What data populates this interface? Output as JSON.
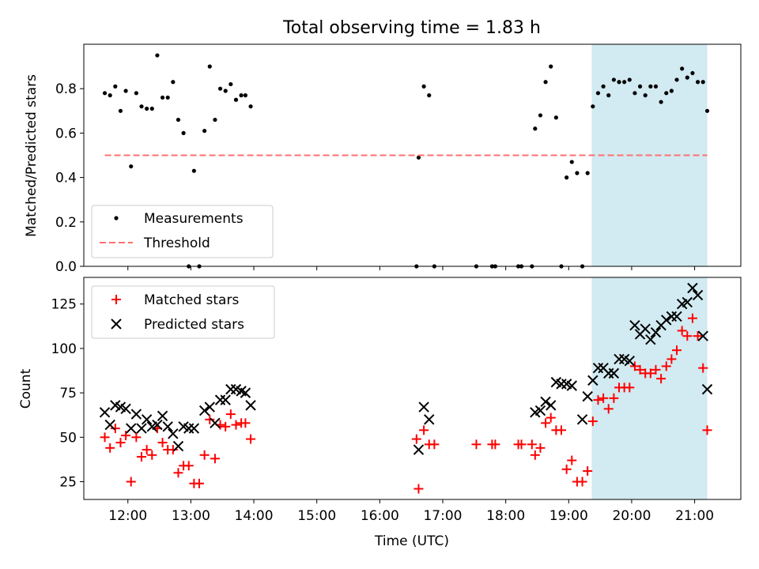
{
  "title": "Total observing time = 1.83 h",
  "colors": {
    "measurement": "#000000",
    "threshold": "#ff7070",
    "matched": "#ff0000",
    "predicted": "#000000",
    "highlight": "#add8e6"
  },
  "chart_data": [
    {
      "type": "scatter",
      "ylabel": "Matched/Predicted stars",
      "ylim": [
        0,
        1.0
      ],
      "yticks": [
        "0.0",
        "0.2",
        "0.4",
        "0.6",
        "0.8"
      ],
      "highlight_span": [
        "19:22",
        "21:12"
      ],
      "legend_position": "lower-left",
      "series": [
        {
          "name": "Measurements",
          "marker": "dot",
          "points": [
            [
              "11:38",
              0.78
            ],
            [
              "11:43",
              0.77
            ],
            [
              "11:48",
              0.81
            ],
            [
              "11:53",
              0.7
            ],
            [
              "11:58",
              0.79
            ],
            [
              "12:03",
              0.45
            ],
            [
              "12:08",
              0.78
            ],
            [
              "12:13",
              0.72
            ],
            [
              "12:18",
              0.71
            ],
            [
              "12:23",
              0.71
            ],
            [
              "12:28",
              0.95
            ],
            [
              "12:33",
              0.76
            ],
            [
              "12:38",
              0.76
            ],
            [
              "12:43",
              0.83
            ],
            [
              "12:48",
              0.66
            ],
            [
              "12:53",
              0.6
            ],
            [
              "12:58",
              0.0
            ],
            [
              "13:03",
              0.43
            ],
            [
              "13:08",
              0.0
            ],
            [
              "13:13",
              0.61
            ],
            [
              "13:18",
              0.9
            ],
            [
              "13:23",
              0.66
            ],
            [
              "13:28",
              0.8
            ],
            [
              "13:33",
              0.79
            ],
            [
              "13:38",
              0.82
            ],
            [
              "13:43",
              0.75
            ],
            [
              "13:48",
              0.77
            ],
            [
              "13:52",
              0.77
            ],
            [
              "13:57",
              0.72
            ],
            [
              "16:35",
              0.0
            ],
            [
              "16:37",
              0.49
            ],
            [
              "16:42",
              0.81
            ],
            [
              "16:47",
              0.77
            ],
            [
              "16:52",
              0.0
            ],
            [
              "17:32",
              0.0
            ],
            [
              "17:47",
              0.0
            ],
            [
              "17:50",
              0.0
            ],
            [
              "18:12",
              0.0
            ],
            [
              "18:15",
              0.0
            ],
            [
              "18:25",
              0.0
            ],
            [
              "18:28",
              0.62
            ],
            [
              "18:33",
              0.68
            ],
            [
              "18:38",
              0.83
            ],
            [
              "18:43",
              0.9
            ],
            [
              "18:48",
              0.67
            ],
            [
              "18:53",
              0.0
            ],
            [
              "18:58",
              0.4
            ],
            [
              "19:03",
              0.47
            ],
            [
              "19:08",
              0.42
            ],
            [
              "19:13",
              0.0
            ],
            [
              "19:18",
              0.42
            ],
            [
              "19:23",
              0.72
            ],
            [
              "19:28",
              0.78
            ],
            [
              "19:33",
              0.81
            ],
            [
              "19:38",
              0.77
            ],
            [
              "19:43",
              0.84
            ],
            [
              "19:48",
              0.83
            ],
            [
              "19:53",
              0.83
            ],
            [
              "19:58",
              0.84
            ],
            [
              "20:03",
              0.78
            ],
            [
              "20:08",
              0.81
            ],
            [
              "20:13",
              0.77
            ],
            [
              "20:18",
              0.81
            ],
            [
              "20:23",
              0.81
            ],
            [
              "20:28",
              0.74
            ],
            [
              "20:33",
              0.78
            ],
            [
              "20:38",
              0.79
            ],
            [
              "20:43",
              0.84
            ],
            [
              "20:48",
              0.89
            ],
            [
              "20:53",
              0.85
            ],
            [
              "20:58",
              0.87
            ],
            [
              "21:03",
              0.83
            ],
            [
              "21:08",
              0.83
            ],
            [
              "21:12",
              0.7
            ]
          ]
        },
        {
          "name": "Threshold",
          "marker": "dashed-line",
          "x": [
            "11:38",
            "21:12"
          ],
          "y": 0.5
        }
      ]
    },
    {
      "type": "scatter",
      "ylabel": "Count",
      "xlabel": "Time (UTC)",
      "ylim": [
        15,
        140
      ],
      "yticks": [
        25,
        50,
        75,
        100,
        125
      ],
      "xticks": [
        "12:00",
        "13:00",
        "14:00",
        "15:00",
        "16:00",
        "17:00",
        "18:00",
        "19:00",
        "20:00",
        "21:00"
      ],
      "highlight_span": [
        "19:22",
        "21:12"
      ],
      "legend_position": "upper-left",
      "series": [
        {
          "name": "Matched stars",
          "marker": "plus",
          "points": [
            [
              "11:38",
              50
            ],
            [
              "11:43",
              44
            ],
            [
              "11:48",
              55
            ],
            [
              "11:53",
              47
            ],
            [
              "11:58",
              51
            ],
            [
              "12:03",
              25
            ],
            [
              "12:08",
              50
            ],
            [
              "12:13",
              39
            ],
            [
              "12:18",
              43
            ],
            [
              "12:23",
              40
            ],
            [
              "12:28",
              55
            ],
            [
              "12:33",
              47
            ],
            [
              "12:38",
              43
            ],
            [
              "12:43",
              43
            ],
            [
              "12:48",
              30
            ],
            [
              "12:53",
              34
            ],
            [
              "12:58",
              34
            ],
            [
              "13:03",
              24
            ],
            [
              "13:08",
              24
            ],
            [
              "13:13",
              40
            ],
            [
              "13:18",
              60
            ],
            [
              "13:23",
              38
            ],
            [
              "13:28",
              57
            ],
            [
              "13:33",
              56
            ],
            [
              "13:38",
              63
            ],
            [
              "13:43",
              57
            ],
            [
              "13:48",
              58
            ],
            [
              "13:52",
              58
            ],
            [
              "13:57",
              49
            ],
            [
              "16:35",
              49
            ],
            [
              "16:37",
              21
            ],
            [
              "16:42",
              54
            ],
            [
              "16:47",
              46
            ],
            [
              "16:52",
              46
            ],
            [
              "17:32",
              46
            ],
            [
              "17:47",
              46
            ],
            [
              "17:50",
              46
            ],
            [
              "18:12",
              46
            ],
            [
              "18:15",
              46
            ],
            [
              "18:25",
              46
            ],
            [
              "18:28",
              40
            ],
            [
              "18:33",
              44
            ],
            [
              "18:38",
              58
            ],
            [
              "18:43",
              61
            ],
            [
              "18:48",
              54
            ],
            [
              "18:53",
              54
            ],
            [
              "18:58",
              32
            ],
            [
              "19:03",
              37
            ],
            [
              "19:08",
              25
            ],
            [
              "19:13",
              25
            ],
            [
              "19:18",
              31
            ],
            [
              "19:23",
              59
            ],
            [
              "19:28",
              71
            ],
            [
              "19:33",
              72
            ],
            [
              "19:38",
              66
            ],
            [
              "19:43",
              72
            ],
            [
              "19:48",
              78
            ],
            [
              "19:53",
              78
            ],
            [
              "19:58",
              78
            ],
            [
              "20:03",
              90
            ],
            [
              "20:08",
              88
            ],
            [
              "20:13",
              86
            ],
            [
              "20:18",
              86
            ],
            [
              "20:23",
              88
            ],
            [
              "20:28",
              83
            ],
            [
              "20:33",
              90
            ],
            [
              "20:38",
              94
            ],
            [
              "20:43",
              99
            ],
            [
              "20:48",
              110
            ],
            [
              "20:53",
              107
            ],
            [
              "20:58",
              117
            ],
            [
              "21:03",
              107
            ],
            [
              "21:08",
              89
            ],
            [
              "21:12",
              54
            ]
          ]
        },
        {
          "name": "Predicted stars",
          "marker": "x",
          "points": [
            [
              "11:38",
              64
            ],
            [
              "11:43",
              57
            ],
            [
              "11:48",
              68
            ],
            [
              "11:53",
              67
            ],
            [
              "11:58",
              66
            ],
            [
              "12:03",
              55
            ],
            [
              "12:08",
              63
            ],
            [
              "12:13",
              55
            ],
            [
              "12:18",
              60
            ],
            [
              "12:23",
              56
            ],
            [
              "12:28",
              57
            ],
            [
              "12:33",
              62
            ],
            [
              "12:38",
              56
            ],
            [
              "12:43",
              52
            ],
            [
              "12:48",
              45
            ],
            [
              "12:53",
              56
            ],
            [
              "12:58",
              55
            ],
            [
              "13:03",
              55
            ],
            [
              "13:13",
              65
            ],
            [
              "13:18",
              67
            ],
            [
              "13:23",
              58
            ],
            [
              "13:28",
              71
            ],
            [
              "13:33",
              71
            ],
            [
              "13:38",
              77
            ],
            [
              "13:43",
              77
            ],
            [
              "13:48",
              76
            ],
            [
              "13:52",
              75
            ],
            [
              "13:57",
              68
            ],
            [
              "16:37",
              43
            ],
            [
              "16:42",
              67
            ],
            [
              "16:47",
              60
            ],
            [
              "18:28",
              64
            ],
            [
              "18:33",
              65
            ],
            [
              "18:38",
              70
            ],
            [
              "18:43",
              68
            ],
            [
              "18:48",
              81
            ],
            [
              "18:53",
              80
            ],
            [
              "18:58",
              80
            ],
            [
              "19:03",
              79
            ],
            [
              "19:13",
              60
            ],
            [
              "19:18",
              73
            ],
            [
              "19:23",
              82
            ],
            [
              "19:28",
              89
            ],
            [
              "19:33",
              89
            ],
            [
              "19:38",
              86
            ],
            [
              "19:43",
              86
            ],
            [
              "19:48",
              94
            ],
            [
              "19:53",
              94
            ],
            [
              "19:58",
              93
            ],
            [
              "20:03",
              113
            ],
            [
              "20:08",
              108
            ],
            [
              "20:13",
              111
            ],
            [
              "20:18",
              105
            ],
            [
              "20:23",
              109
            ],
            [
              "20:28",
              113
            ],
            [
              "20:33",
              116
            ],
            [
              "20:38",
              118
            ],
            [
              "20:43",
              118
            ],
            [
              "20:48",
              125
            ],
            [
              "20:53",
              126
            ],
            [
              "20:58",
              134
            ],
            [
              "21:03",
              130
            ],
            [
              "21:08",
              107
            ],
            [
              "21:12",
              77
            ]
          ]
        }
      ]
    }
  ]
}
